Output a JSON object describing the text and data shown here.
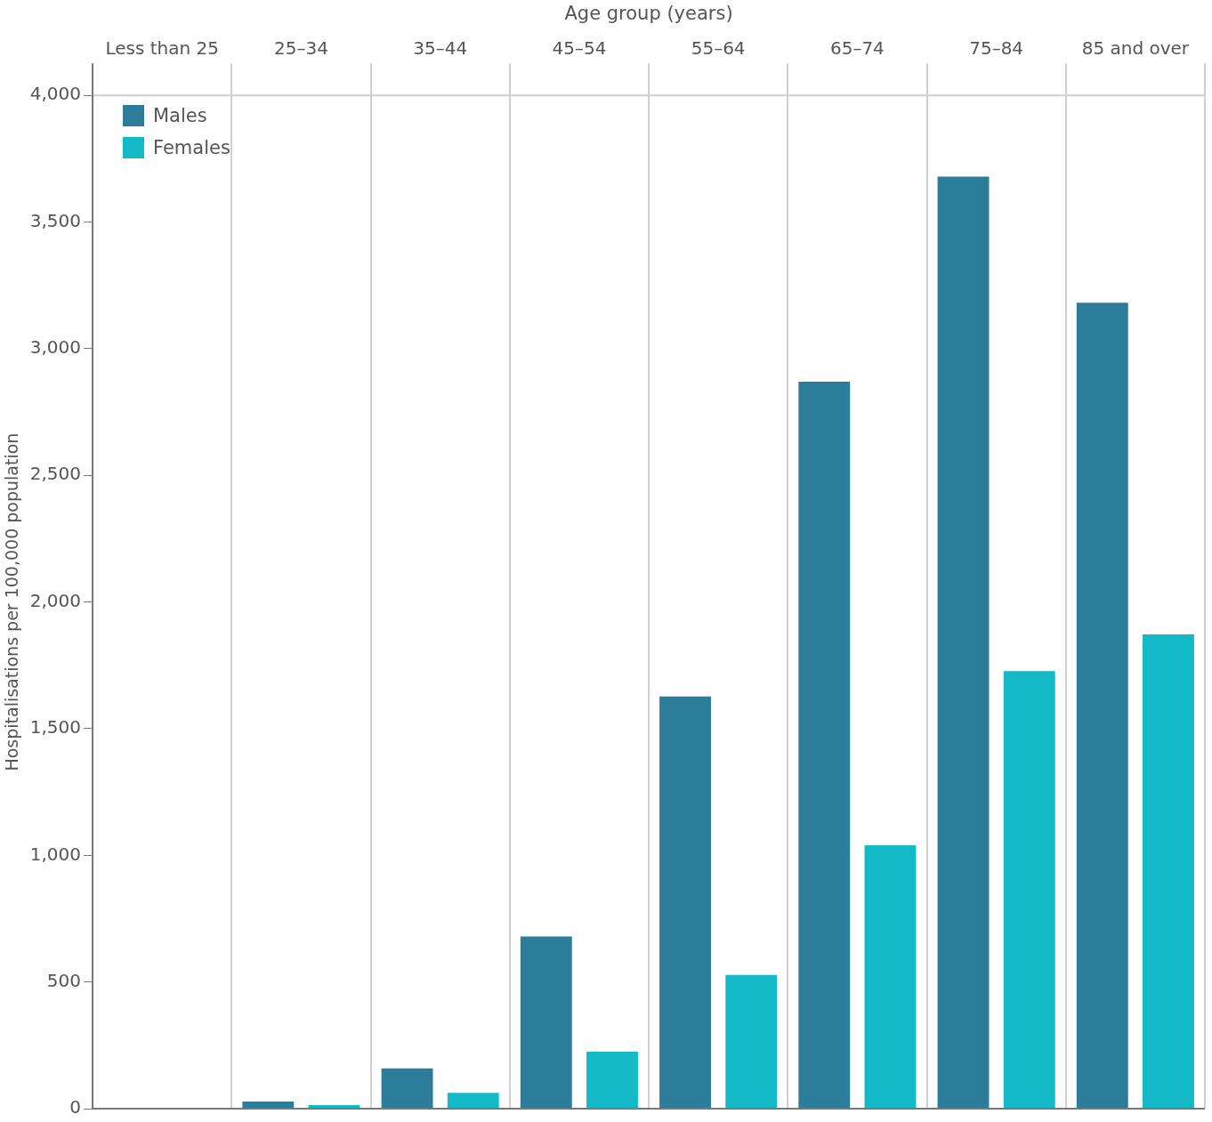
{
  "chart_data": {
    "type": "bar",
    "xlabel": "Age group (years)",
    "ylabel": "Hospitalisations per 100,000 population",
    "categories": [
      "Less than 25",
      "25–34",
      "35–44",
      "45–54",
      "55–64",
      "65–74",
      "75–84",
      "85 and over"
    ],
    "series": [
      {
        "name": "Males",
        "color": "#2c7d99",
        "values": [
          null,
          28,
          159,
          680,
          1627,
          2870,
          3679,
          3181
        ]
      },
      {
        "name": "Females",
        "color": "#13b9c7",
        "values": [
          null,
          14,
          62,
          225,
          528,
          1040,
          1727,
          1872
        ]
      }
    ],
    "ylim": [
      0,
      4000
    ],
    "yticks": [
      0,
      500,
      {
        "value": 1000,
        "label": "1,000"
      },
      {
        "value": 1500,
        "label": "1,500"
      },
      {
        "value": 2000,
        "label": "2,000"
      },
      {
        "value": 2500,
        "label": "2,500"
      },
      {
        "value": 3000,
        "label": "3,000"
      },
      {
        "value": 3500,
        "label": "3,500"
      },
      {
        "value": 4000,
        "label": "4,000"
      }
    ],
    "grid": "x",
    "legend": "top left"
  }
}
